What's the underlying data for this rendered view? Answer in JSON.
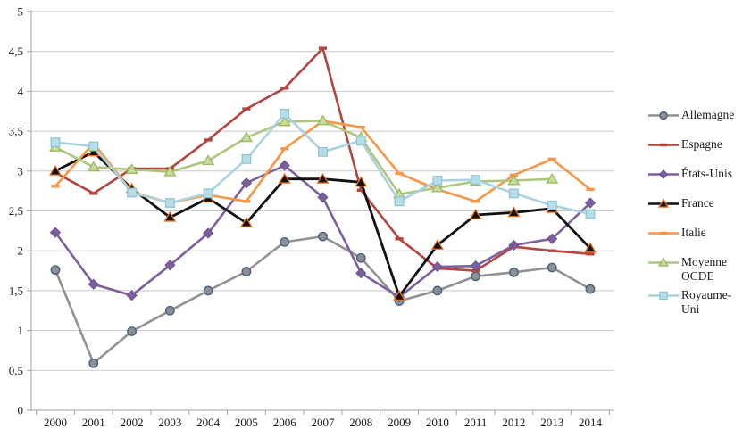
{
  "chart_data": {
    "type": "line",
    "title": "",
    "xlabel": "",
    "ylabel": "",
    "ylim": [
      0,
      5
    ],
    "y_step": 0.5,
    "grid": "horizontal",
    "legend_position": "right",
    "x_categories": [
      "2000",
      "2001",
      "2002",
      "2003",
      "2004",
      "2005",
      "2006",
      "2007",
      "2008",
      "2009",
      "2010",
      "2011",
      "2012",
      "2013",
      "2014"
    ],
    "y_tick_labels": [
      "0",
      "0,5",
      "1",
      "1,5",
      "2",
      "2,5",
      "3",
      "3,5",
      "4",
      "4,5",
      "5"
    ],
    "series": [
      {
        "name": "Allemagne",
        "marker": "circle",
        "line_color": "#929292",
        "marker_fill": "#8f8f8f",
        "marker_stroke": "#44618c",
        "values": [
          1.76,
          0.59,
          0.99,
          1.25,
          1.5,
          1.74,
          2.11,
          2.18,
          1.91,
          1.37,
          1.5,
          1.68,
          1.73,
          1.79,
          1.52
        ]
      },
      {
        "name": "Espagne",
        "marker": "dash",
        "line_color": "#b2453f",
        "marker_fill": "#b2453f",
        "marker_stroke": "#b2453f",
        "values": [
          2.98,
          2.72,
          3.03,
          3.03,
          3.39,
          3.78,
          4.04,
          4.54,
          2.76,
          2.15,
          1.78,
          1.75,
          2.05,
          2.0,
          1.96
        ]
      },
      {
        "name": "États-Unis",
        "marker": "diamond",
        "line_color": "#7d5fa0",
        "marker_fill": "#7d5fa0",
        "marker_stroke": "#68518a",
        "values": [
          2.23,
          1.58,
          1.44,
          1.82,
          2.22,
          2.85,
          3.07,
          2.67,
          1.72,
          1.42,
          1.8,
          1.81,
          2.07,
          2.15,
          2.6
        ]
      },
      {
        "name": "France",
        "marker": "triangle",
        "line_color": "#111111",
        "marker_fill": "#111111",
        "marker_stroke": "#e8721c",
        "values": [
          3.0,
          3.24,
          2.78,
          2.42,
          2.66,
          2.35,
          2.9,
          2.9,
          2.86,
          1.43,
          2.07,
          2.45,
          2.48,
          2.53,
          2.03
        ]
      },
      {
        "name": "Italie",
        "marker": "dash",
        "line_color": "#f79646",
        "marker_fill": "#f79646",
        "marker_stroke": "#f79646",
        "values": [
          2.81,
          3.35,
          2.74,
          2.6,
          2.7,
          2.62,
          3.28,
          3.63,
          3.55,
          2.97,
          2.77,
          2.62,
          2.95,
          3.15,
          2.77
        ]
      },
      {
        "name": "Moyenne OCDE",
        "marker": "triangle",
        "line_color": "#aec57e",
        "marker_fill": "#c8da9f",
        "marker_stroke": "#9bbb59",
        "values": [
          3.3,
          3.05,
          3.02,
          2.99,
          3.13,
          3.42,
          3.62,
          3.63,
          3.42,
          2.71,
          2.79,
          2.87,
          2.88,
          2.9,
          null
        ]
      },
      {
        "name": "Royaume-Uni",
        "marker": "square",
        "line_color": "#a9d3df",
        "marker_fill": "#b7dee8",
        "marker_stroke": "#8dc3d2",
        "values": [
          3.36,
          3.31,
          2.73,
          2.6,
          2.72,
          3.15,
          3.72,
          3.24,
          3.38,
          2.62,
          2.88,
          2.89,
          2.72,
          2.57,
          2.46
        ]
      }
    ]
  },
  "colors": {
    "background": "#ffffff",
    "gridline": "#c8c8c8",
    "axis": "#a3a3a3",
    "tick_label": "#1a1a1a"
  }
}
